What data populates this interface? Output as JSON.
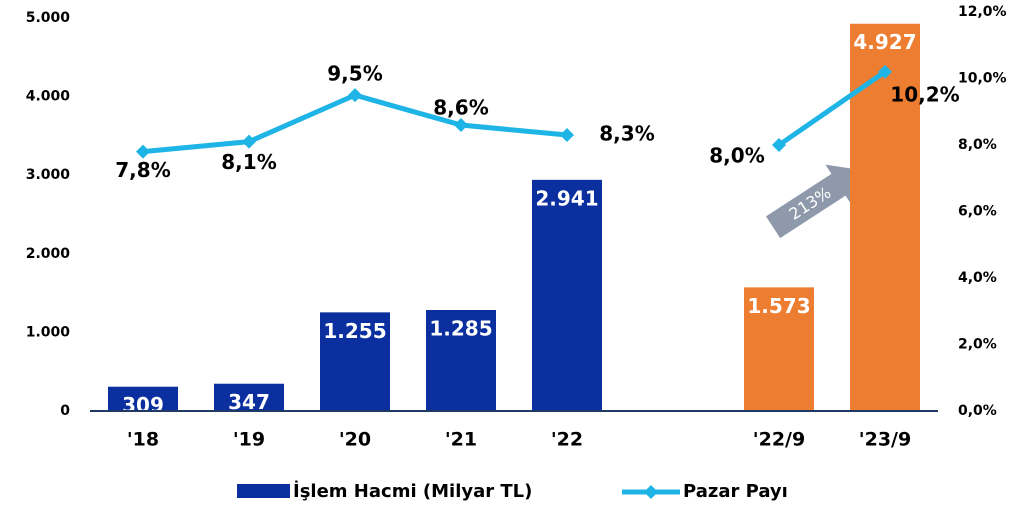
{
  "chart_data": {
    "type": "bar-line",
    "categories": [
      "'18",
      "'19",
      "'20",
      "'21",
      "'22",
      null,
      "'22/9",
      "'23/9"
    ],
    "series": [
      {
        "name": "İşlem Hacmi (Milyar TL)",
        "type": "bar",
        "color": "#0b2f9e",
        "colors": [
          "#0b2f9e",
          "#0b2f9e",
          "#0b2f9e",
          "#0b2f9e",
          "#0b2f9e",
          null,
          "#ed7d31",
          "#ed7d31"
        ],
        "values": [
          309,
          347,
          1255,
          1285,
          2941,
          null,
          1573,
          4927
        ],
        "value_labels": [
          "309",
          "347",
          "1.255",
          "1.285",
          "2.941",
          null,
          "1.573",
          "4.927"
        ]
      },
      {
        "name": "Pazar Payı",
        "type": "line",
        "axis": "y2",
        "color": "#1eb4e6",
        "values": [
          7.8,
          8.1,
          9.5,
          8.6,
          8.3,
          null,
          8.0,
          10.2
        ],
        "value_labels": [
          "7,8%",
          "8,1%",
          "9,5%",
          "8,6%",
          "8,3%",
          null,
          "8,0%",
          "10,2%"
        ]
      }
    ],
    "ylim": [
      0,
      5000
    ],
    "yticks": [
      0,
      {
        "value": 1000,
        "label": "1.000"
      },
      {
        "value": 2000,
        "label": "2.000"
      },
      {
        "value": 3000,
        "label": "3.000"
      },
      {
        "value": 4000,
        "label": "4.000"
      },
      {
        "value": 5000,
        "label": "5.000"
      }
    ],
    "y2lim": [
      0,
      12
    ],
    "y2ticks": [
      {
        "value": 0,
        "label": "0,0%"
      },
      {
        "value": 2,
        "label": "2,0%"
      },
      {
        "value": 4,
        "label": "4,0%"
      },
      {
        "value": 6,
        "label": "6,0%"
      },
      {
        "value": 8,
        "label": "8,0%"
      },
      {
        "value": 10,
        "label": "10,0%"
      },
      {
        "value": 12,
        "label": "12,0%"
      }
    ],
    "annotation": "213%",
    "legend": "bottom"
  }
}
